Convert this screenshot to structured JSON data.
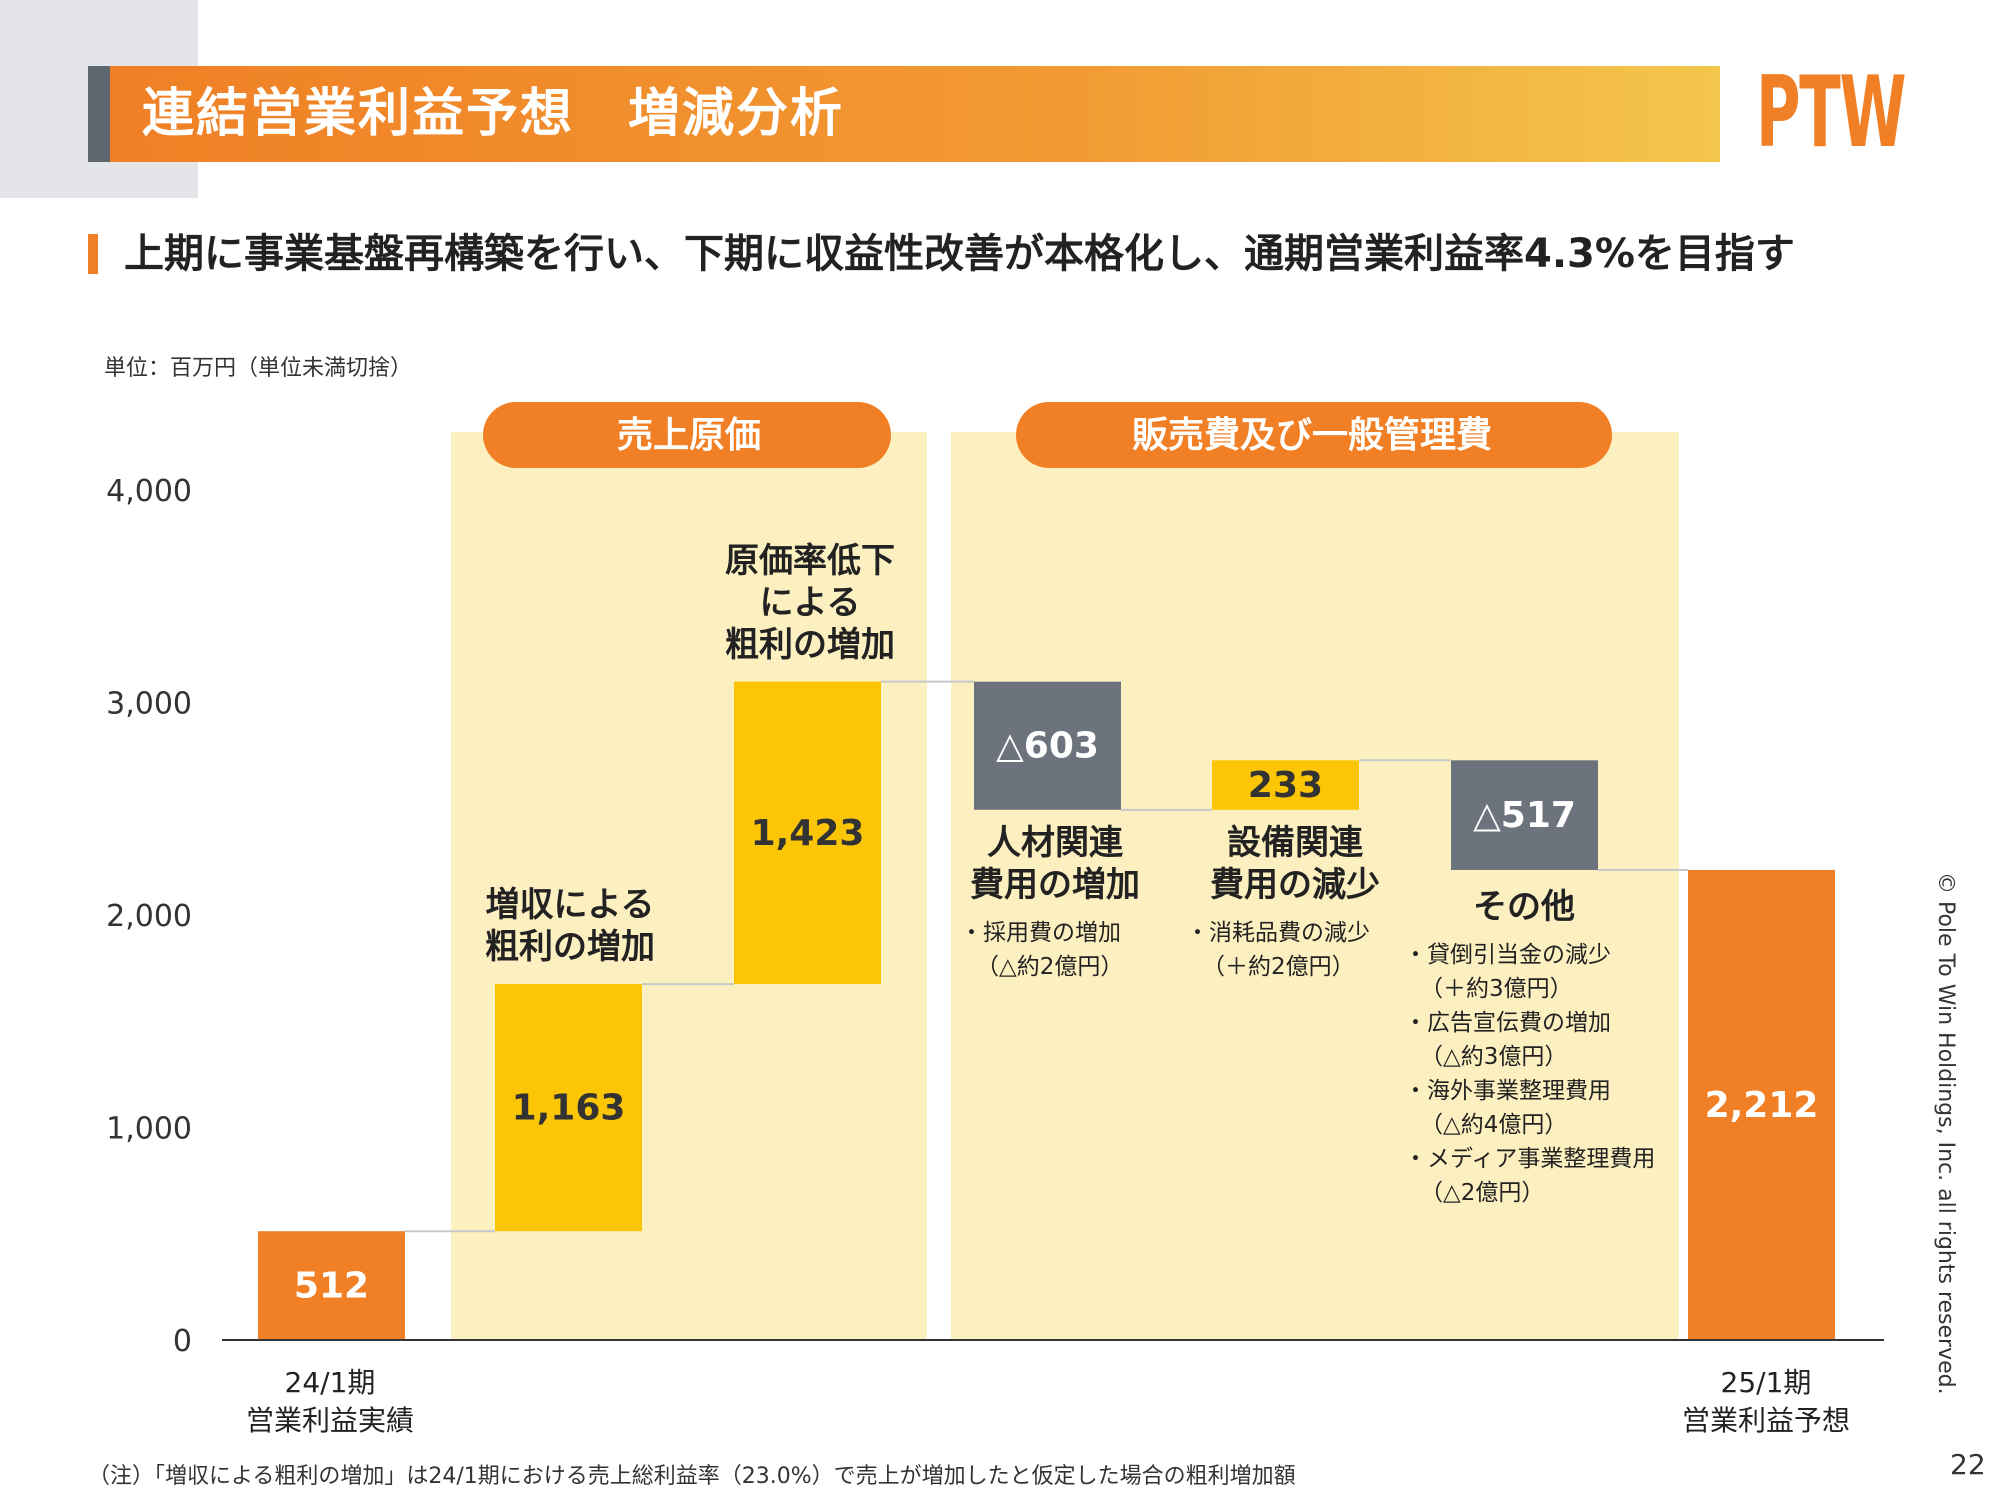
{
  "header": {
    "title": "連結営業利益予想　増減分析",
    "logo": "PTW",
    "subtitle": "上期に事業基盤再構築を行い、下期に収益性改善が本格化し、通期営業利益率4.3%を目指す"
  },
  "unit_label": "単位：百万円（単位未満切捨）",
  "colors": {
    "orange": "#f07f25",
    "yellow": "#fcc606",
    "gray": "#6c737c",
    "panel": "#fdf0c0"
  },
  "chart_data": {
    "type": "waterfall",
    "ylim": [
      0,
      4000
    ],
    "yticks": [
      "0",
      "1,000",
      "2,000",
      "3,000",
      "4,000"
    ],
    "groups": [
      {
        "label": "売上原価"
      },
      {
        "label": "販売費及び一般管理費"
      }
    ],
    "bars": [
      {
        "value": 512,
        "label": "512",
        "start": 0,
        "end": 512,
        "kind": "total"
      },
      {
        "value": 1163,
        "label": "1,163",
        "start": 512,
        "end": 1675,
        "kind": "increase"
      },
      {
        "value": 1423,
        "label": "1,423",
        "start": 1675,
        "end": 3098,
        "kind": "increase"
      },
      {
        "value": -603,
        "label": "△603",
        "start": 3098,
        "end": 2495,
        "kind": "decrease"
      },
      {
        "value": 233,
        "label": "233",
        "start": 2495,
        "end": 2728,
        "kind": "increase"
      },
      {
        "value": -517,
        "label": "△517",
        "start": 2728,
        "end": 2212,
        "kind": "decrease"
      },
      {
        "value": 2212,
        "label": "2,212",
        "start": 0,
        "end": 2212,
        "kind": "total"
      }
    ],
    "categories": [
      {
        "line1": "24/1期",
        "line2": "営業利益実績"
      },
      {
        "line1": "25/1期",
        "line2": "営業利益予想"
      }
    ],
    "annotations": {
      "zoushu": [
        "増収による",
        "粗利の増加"
      ],
      "genka": [
        "原価率低下",
        "による",
        "粗利の増加"
      ],
      "jinzai": {
        "title": [
          "人材関連",
          "費用の増加"
        ],
        "bullets": [
          [
            "・採用費の増加",
            "（△約2億円）"
          ]
        ]
      },
      "setsubi": {
        "title": [
          "設備関連",
          "費用の減少"
        ],
        "bullets": [
          [
            "・消耗品費の減少",
            "（＋約2億円）"
          ]
        ]
      },
      "sonota": {
        "title": [
          "その他"
        ],
        "bullets": [
          [
            "・貸倒引当金の減少",
            "（＋約3億円）"
          ],
          [
            "・広告宣伝費の増加",
            "（△約3億円）"
          ],
          [
            "・海外事業整理費用",
            "（△約4億円）"
          ],
          [
            "・メディア事業整理費用",
            "（△2億円）"
          ]
        ]
      }
    }
  },
  "footnote": "（注）「増収による粗利の増加」は24/1期における売上総利益率（23.0%）で売上が増加したと仮定した場合の粗利増加額",
  "copyright": "© Pole To Win Holdings, Inc. all rights reserved.",
  "page_number": "22"
}
